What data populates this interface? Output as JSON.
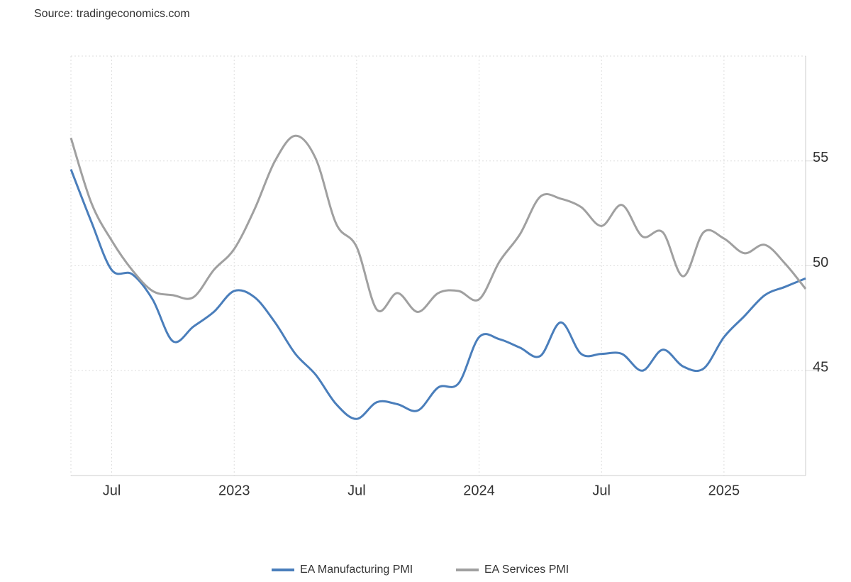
{
  "chart_data": {
    "type": "line",
    "source": "Source: tradingeconomics.com",
    "x": [
      "2022-05",
      "2022-06",
      "2022-07",
      "2022-08",
      "2022-09",
      "2022-10",
      "2022-11",
      "2022-12",
      "2023-01",
      "2023-02",
      "2023-03",
      "2023-04",
      "2023-05",
      "2023-06",
      "2023-07",
      "2023-08",
      "2023-09",
      "2023-10",
      "2023-11",
      "2023-12",
      "2024-01",
      "2024-02",
      "2024-03",
      "2024-04",
      "2024-05",
      "2024-06",
      "2024-07",
      "2024-08",
      "2024-09",
      "2024-10",
      "2024-11",
      "2024-12",
      "2025-01",
      "2025-02",
      "2025-03",
      "2025-04",
      "2025-05"
    ],
    "series": [
      {
        "name": "EA Manufacturing PMI",
        "color": "#4a7ebb",
        "values": [
          54.6,
          52.1,
          49.8,
          49.6,
          48.4,
          46.4,
          47.1,
          47.8,
          48.8,
          48.5,
          47.3,
          45.8,
          44.8,
          43.4,
          42.7,
          43.5,
          43.4,
          43.1,
          44.2,
          44.4,
          46.6,
          46.5,
          46.1,
          45.7,
          47.3,
          45.8,
          45.8,
          45.8,
          45.0,
          46.0,
          45.2,
          45.1,
          46.6,
          47.6,
          48.6,
          49.0,
          49.4
        ]
      },
      {
        "name": "EA Services PMI",
        "color": "#a0a0a0",
        "values": [
          56.1,
          53.0,
          51.2,
          49.8,
          48.8,
          48.6,
          48.5,
          49.8,
          50.8,
          52.7,
          55.0,
          56.2,
          55.1,
          52.0,
          50.9,
          47.9,
          48.7,
          47.8,
          48.7,
          48.8,
          48.4,
          50.2,
          51.5,
          53.3,
          53.2,
          52.8,
          51.9,
          52.9,
          51.4,
          51.6,
          49.5,
          51.6,
          51.3,
          50.6,
          51.0,
          50.1,
          48.9
        ]
      }
    ],
    "xticks": [
      {
        "value": "2022-07",
        "label": "Jul"
      },
      {
        "value": "2023-01",
        "label": "2023"
      },
      {
        "value": "2023-07",
        "label": "Jul"
      },
      {
        "value": "2024-01",
        "label": "2024"
      },
      {
        "value": "2024-07",
        "label": "Jul"
      },
      {
        "value": "2025-01",
        "label": "2025"
      }
    ],
    "ylim": [
      40,
      60
    ],
    "yticks": [
      45,
      50,
      55
    ],
    "grid": true,
    "legend": "bottom"
  }
}
